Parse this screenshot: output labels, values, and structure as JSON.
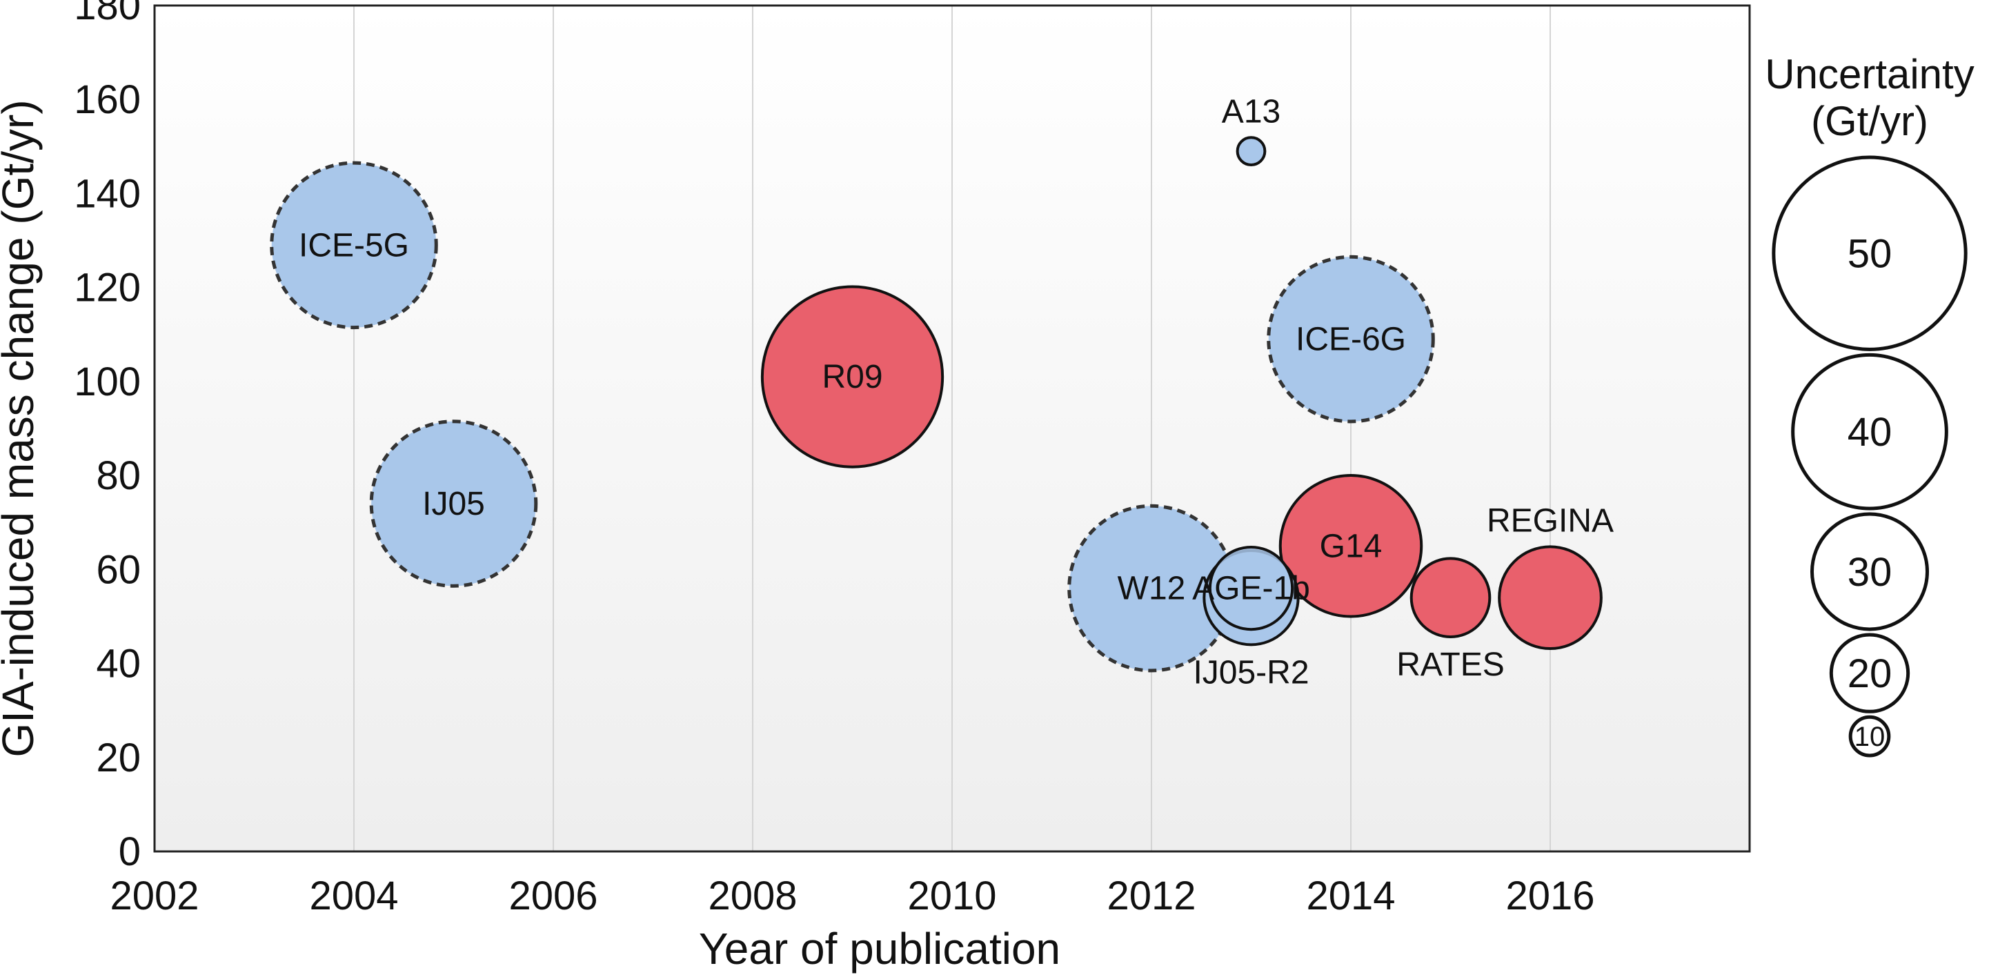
{
  "chart_data": {
    "type": "scatter",
    "subtype": "bubble",
    "xlabel": "Year of publication",
    "ylabel": "GIA-induced mass change (Gt/yr)",
    "xlim": [
      2002,
      2018
    ],
    "ylim": [
      0,
      180
    ],
    "xticks": [
      2002,
      2004,
      2006,
      2008,
      2010,
      2012,
      2014,
      2016
    ],
    "yticks": [
      0,
      20,
      40,
      60,
      80,
      100,
      120,
      140,
      160,
      180
    ],
    "grid": "vertical",
    "colors": {
      "blue": "#a9c7ea",
      "red": "#e9606c",
      "dash": "#333333"
    },
    "points": [
      {
        "label": "ICE-5G",
        "x": 2004,
        "y": 129,
        "uncertainty": 42,
        "color": "blue",
        "dashed": true,
        "label_pos": "center"
      },
      {
        "label": "IJ05",
        "x": 2005,
        "y": 74,
        "uncertainty": 42,
        "color": "blue",
        "dashed": true,
        "label_pos": "center"
      },
      {
        "label": "R09",
        "x": 2009,
        "y": 101,
        "uncertainty": 46,
        "color": "red",
        "dashed": false,
        "label_pos": "center"
      },
      {
        "label": "A13",
        "x": 2013,
        "y": 149,
        "uncertainty": 7,
        "color": "blue",
        "dashed": false,
        "label_pos": "above"
      },
      {
        "label": "ICE-6G",
        "x": 2014,
        "y": 109,
        "uncertainty": 42,
        "color": "blue",
        "dashed": true,
        "label_pos": "center"
      },
      {
        "label": "W12",
        "x": 2012,
        "y": 56,
        "uncertainty": 42,
        "color": "blue",
        "dashed": true,
        "label_pos": "center"
      },
      {
        "label": "G14",
        "x": 2014,
        "y": 65,
        "uncertainty": 36,
        "color": "red",
        "dashed": false,
        "label_pos": "center"
      },
      {
        "label": "IJ05-R2",
        "x": 2013,
        "y": 54,
        "uncertainty": 24,
        "color": "blue",
        "dashed": false,
        "label_pos": "below"
      },
      {
        "label": "AGE-1b",
        "x": 2013,
        "y": 56,
        "uncertainty": 21,
        "color": "blue",
        "dashed": false,
        "label_pos": "center"
      },
      {
        "label": "RATES",
        "x": 2015,
        "y": 54,
        "uncertainty": 20,
        "color": "red",
        "dashed": false,
        "label_pos": "below"
      },
      {
        "label": "REGINA",
        "x": 2016,
        "y": 54,
        "uncertainty": 26,
        "color": "red",
        "dashed": false,
        "label_pos": "above"
      }
    ],
    "legend": {
      "title_lines": [
        "Uncertainty",
        "(Gt/yr)"
      ],
      "sizes": [
        50,
        40,
        30,
        20,
        10
      ],
      "placement": "right"
    }
  }
}
